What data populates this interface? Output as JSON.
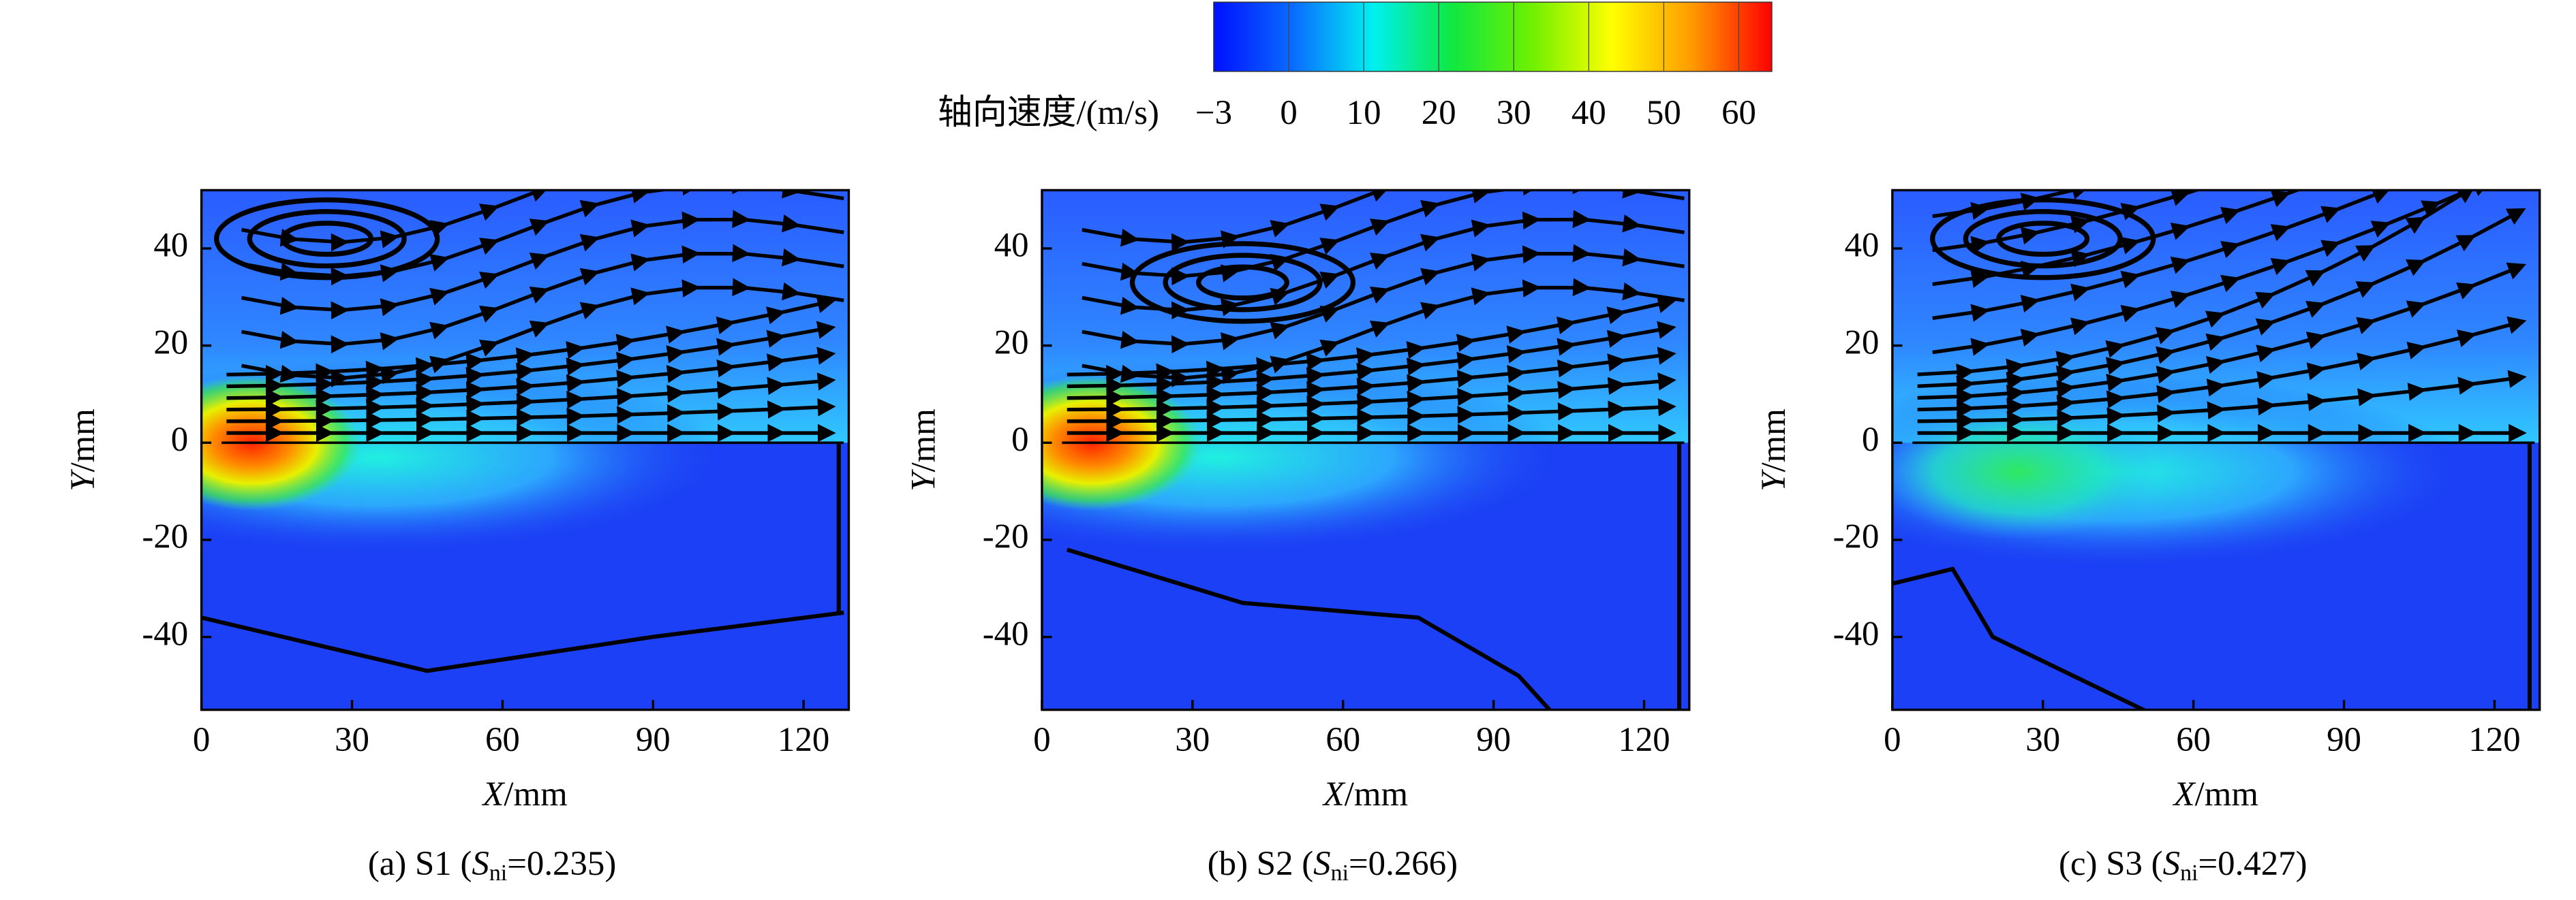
{
  "colorbar": {
    "label": "轴向速度/(m/s)",
    "ticks": [
      {
        "value": -3,
        "label": "−3"
      },
      0,
      10,
      20,
      30,
      40,
      50,
      60
    ],
    "colors": [
      "#0010ff",
      "#0a6cff",
      "#00f0f0",
      "#10e840",
      "#70f000",
      "#ffff00",
      "#ff9a00",
      "#ff0000"
    ]
  },
  "chart_data": [
    {
      "type": "heatmap",
      "caption_prefix": "(a) S1 (",
      "caption_symbol": "S",
      "caption_subscript": "ni",
      "caption_suffix": "=0.235)",
      "x_label": "X",
      "x_unit": "/mm",
      "y_label": "Y",
      "y_unit": "/mm",
      "xlim": [
        0,
        129
      ],
      "ylim": [
        -55,
        52
      ],
      "xticks": [
        0,
        30,
        60,
        90,
        120
      ],
      "yticks": [
        -40,
        -20,
        0,
        20,
        40
      ]
    },
    {
      "type": "heatmap",
      "caption_prefix": "(b) S2 (",
      "caption_symbol": "S",
      "caption_subscript": "ni",
      "caption_suffix": "=0.266)",
      "x_label": "X",
      "x_unit": "/mm",
      "y_label": "Y",
      "y_unit": "/mm",
      "xlim": [
        0,
        129
      ],
      "ylim": [
        -55,
        52
      ],
      "xticks": [
        0,
        30,
        60,
        90,
        120
      ],
      "yticks": [
        -40,
        -20,
        0,
        20,
        40
      ]
    },
    {
      "type": "heatmap",
      "caption_prefix": "(c) S3 (",
      "caption_symbol": "S",
      "caption_subscript": "ni",
      "caption_suffix": "=0.427)",
      "x_label": "X",
      "x_unit": "/mm",
      "y_label": "Y",
      "y_unit": "/mm",
      "xlim": [
        0,
        129
      ],
      "ylim": [
        -55,
        52
      ],
      "xticks": [
        0,
        30,
        60,
        90,
        120
      ],
      "yticks": [
        -40,
        -20,
        0,
        20,
        40
      ]
    }
  ]
}
